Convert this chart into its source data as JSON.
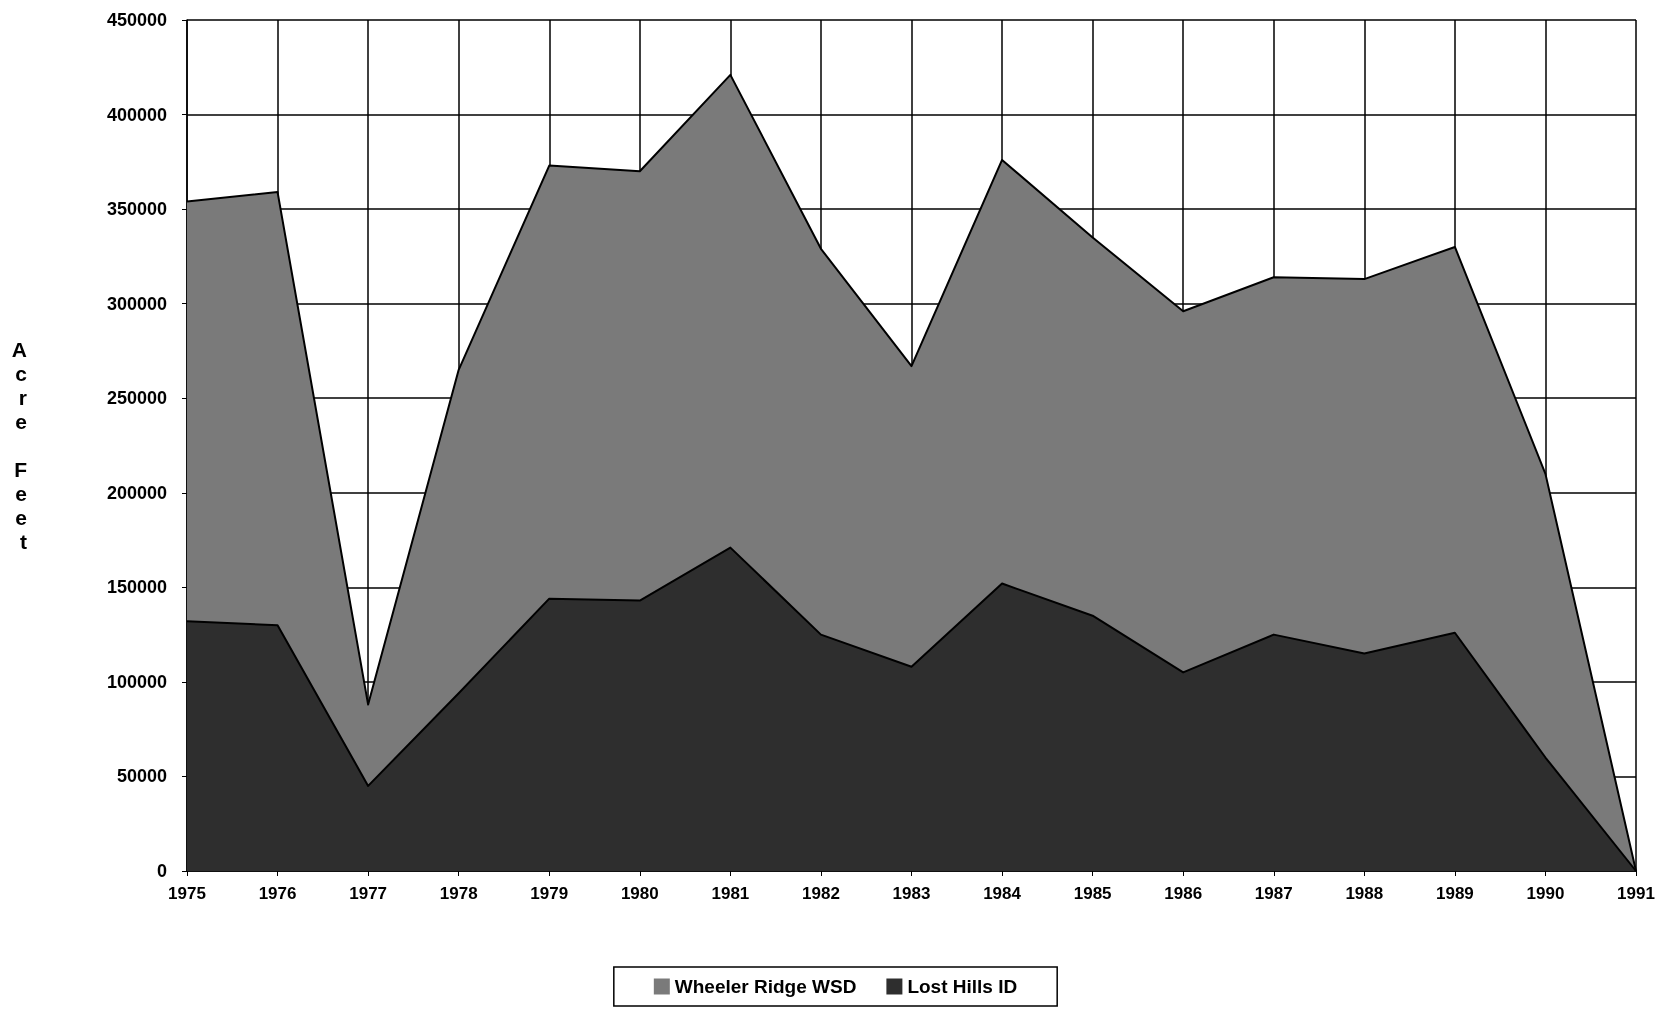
{
  "chart_data": {
    "type": "area",
    "stacked": true,
    "ylabel": "Acre Feet",
    "categories": [
      "1975",
      "1976",
      "1977",
      "1978",
      "1979",
      "1980",
      "1981",
      "1982",
      "1983",
      "1984",
      "1985",
      "1986",
      "1987",
      "1988",
      "1989",
      "1990",
      "1991"
    ],
    "series": [
      {
        "name": "Lost Hills ID",
        "color": "#2e2e2e",
        "values": [
          132000,
          130000,
          45000,
          94000,
          144000,
          143000,
          171000,
          125000,
          108000,
          152000,
          135000,
          105000,
          125000,
          115000,
          126000,
          60000,
          0
        ]
      },
      {
        "name": "Wheeler Ridge WSD",
        "color": "#7a7a7a",
        "values": [
          222000,
          229000,
          43000,
          171000,
          229000,
          227000,
          250000,
          204000,
          159000,
          224000,
          200000,
          191000,
          189000,
          198000,
          204000,
          150000,
          0
        ]
      }
    ],
    "ylim": [
      0,
      450000
    ],
    "yticks": [
      0,
      50000,
      100000,
      150000,
      200000,
      250000,
      300000,
      350000,
      400000,
      450000
    ],
    "grid": true,
    "legend": "bottom"
  }
}
